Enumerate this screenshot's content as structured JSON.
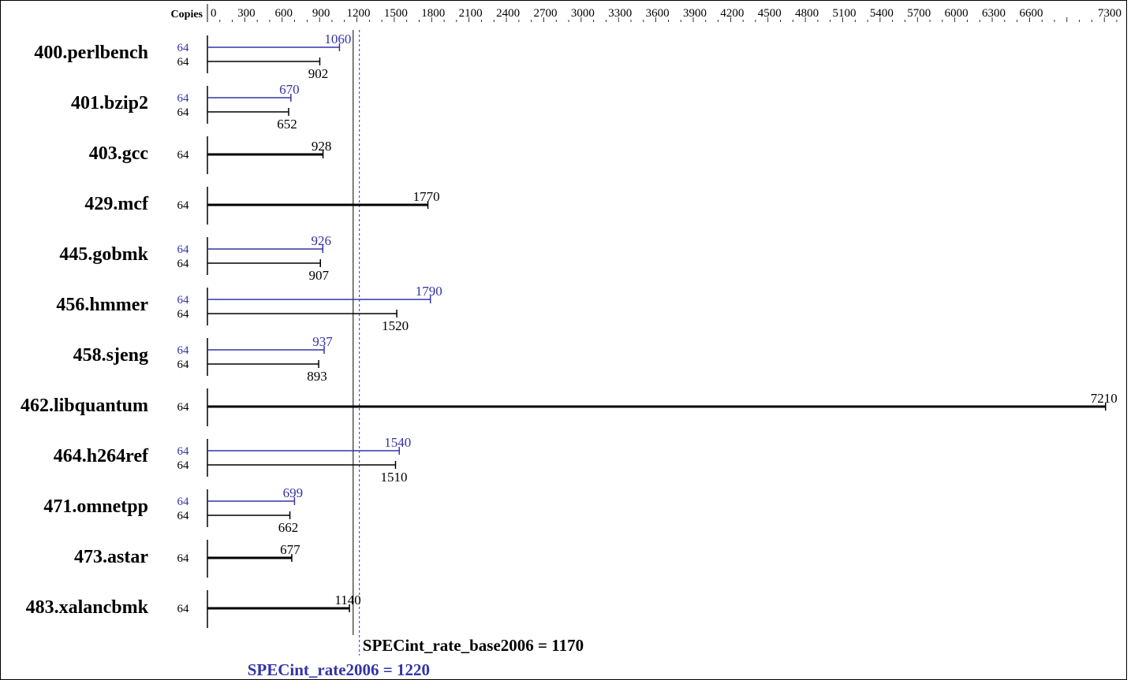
{
  "chart_data": {
    "type": "bar",
    "orientation": "horizontal",
    "copies_header": "Copies",
    "x_ticks": [
      0,
      300,
      600,
      900,
      1200,
      1500,
      1800,
      2100,
      2400,
      2700,
      3000,
      3300,
      3600,
      3900,
      4200,
      4500,
      4800,
      5100,
      5400,
      5700,
      6000,
      6300,
      6600,
      7300
    ],
    "xlim": [
      0,
      7300
    ],
    "colors": {
      "base": "#000000",
      "peak": "#3333aa"
    },
    "benchmarks": [
      {
        "name": "400.perlbench",
        "peak": {
          "copies": "64",
          "value": 1060,
          "label": "1060"
        },
        "base": {
          "copies": "64",
          "value": 902,
          "label": "902"
        }
      },
      {
        "name": "401.bzip2",
        "peak": {
          "copies": "64",
          "value": 670,
          "label": "670"
        },
        "base": {
          "copies": "64",
          "value": 652,
          "label": "652"
        }
      },
      {
        "name": "403.gcc",
        "base": {
          "copies": "64",
          "value": 928,
          "label": "928"
        }
      },
      {
        "name": "429.mcf",
        "base": {
          "copies": "64",
          "value": 1770,
          "label": "1770"
        }
      },
      {
        "name": "445.gobmk",
        "peak": {
          "copies": "64",
          "value": 926,
          "label": "926"
        },
        "base": {
          "copies": "64",
          "value": 907,
          "label": "907"
        }
      },
      {
        "name": "456.hmmer",
        "peak": {
          "copies": "64",
          "value": 1790,
          "label": "1790"
        },
        "base": {
          "copies": "64",
          "value": 1520,
          "label": "1520"
        }
      },
      {
        "name": "458.sjeng",
        "peak": {
          "copies": "64",
          "value": 937,
          "label": "937"
        },
        "base": {
          "copies": "64",
          "value": 893,
          "label": "893"
        }
      },
      {
        "name": "462.libquantum",
        "base": {
          "copies": "64",
          "value": 7210,
          "label": "7210"
        }
      },
      {
        "name": "464.h264ref",
        "peak": {
          "copies": "64",
          "value": 1540,
          "label": "1540"
        },
        "base": {
          "copies": "64",
          "value": 1510,
          "label": "1510"
        }
      },
      {
        "name": "471.omnetpp",
        "peak": {
          "copies": "64",
          "value": 699,
          "label": "699"
        },
        "base": {
          "copies": "64",
          "value": 662,
          "label": "662"
        }
      },
      {
        "name": "473.astar",
        "base": {
          "copies": "64",
          "value": 677,
          "label": "677"
        }
      },
      {
        "name": "483.xalancbmk",
        "base": {
          "copies": "64",
          "value": 1140,
          "label": "1140"
        }
      }
    ],
    "summary": {
      "base": {
        "label": "SPECint_rate_base2006 = 1170",
        "value": 1170
      },
      "peak": {
        "label": "SPECint_rate2006 = 1220",
        "value": 1220
      }
    }
  }
}
